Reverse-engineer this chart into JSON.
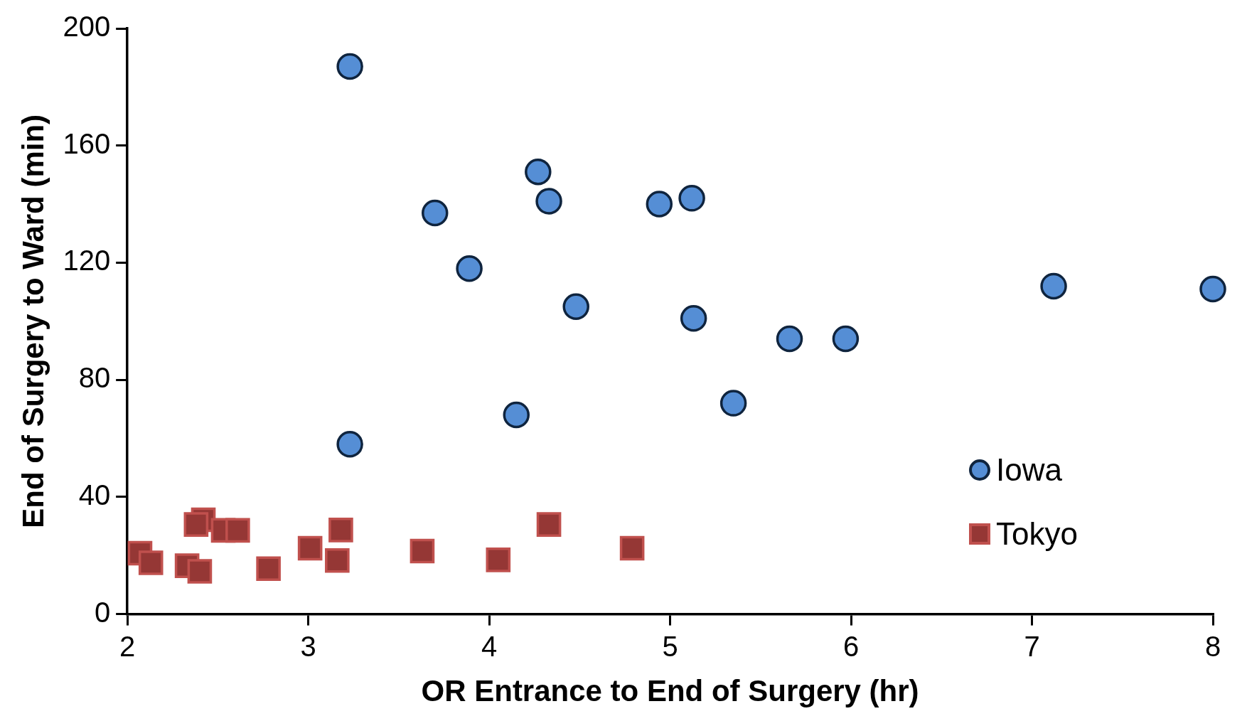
{
  "chart_data": {
    "type": "scatter",
    "xlabel": "OR Entrance to End of Surgery (hr)",
    "ylabel": "End of Surgery to Ward (min)",
    "xlim": [
      2,
      8
    ],
    "xticks": [
      2,
      3,
      4,
      5,
      6,
      7,
      8
    ],
    "ylim": [
      0,
      200
    ],
    "yticks": [
      0,
      40,
      80,
      120,
      160,
      200
    ],
    "grid": false,
    "legend": "bottom right",
    "series": [
      {
        "name": "Iowa",
        "color": "#558ed5",
        "marker": "circle",
        "x": [
          3.23,
          4.27,
          4.33,
          3.7,
          4.94,
          5.12,
          3.89,
          4.48,
          5.13,
          5.66,
          5.97,
          5.35,
          4.15,
          3.23,
          7.12,
          8.0
        ],
        "values": [
          187,
          151,
          141,
          137,
          140,
          142,
          118,
          105,
          101,
          94,
          94,
          72,
          68,
          58,
          112,
          111
        ]
      },
      {
        "name": "Tokyo",
        "color": "#953735",
        "marker": "square",
        "x": [
          2.07,
          2.13,
          2.42,
          2.38,
          2.33,
          2.4,
          2.53,
          2.61,
          2.78,
          3.01,
          3.18,
          3.16,
          3.63,
          4.05,
          4.33,
          4.79
        ],
        "values": [
          20.8,
          17.5,
          32.2,
          30.6,
          16.5,
          14.6,
          28.6,
          28.6,
          15.5,
          22.5,
          28.7,
          18.3,
          21.5,
          18.5,
          30.6,
          22.5
        ]
      }
    ]
  }
}
